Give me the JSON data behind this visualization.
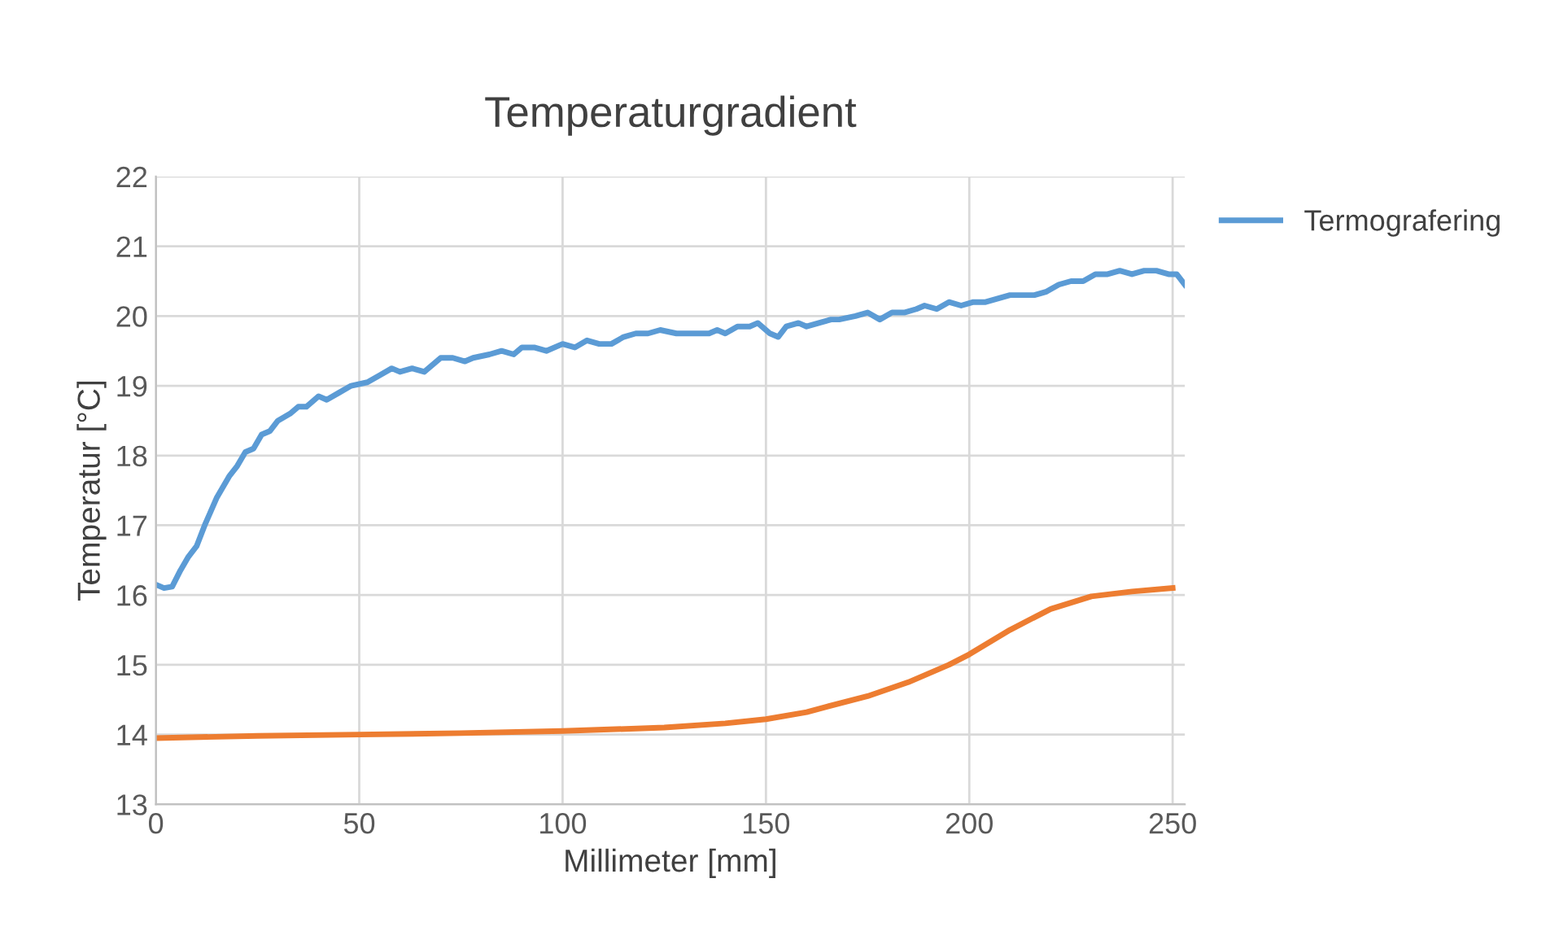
{
  "chart_data": {
    "type": "line",
    "title": "Temperaturgradient",
    "xlabel": "Millimeter [mm]",
    "ylabel": "Temperatur [°C]",
    "xlim": [
      0,
      253
    ],
    "xticks": [
      0,
      50,
      100,
      150,
      200,
      250
    ],
    "ylim": [
      13,
      22
    ],
    "yticks": [
      13,
      14,
      15,
      16,
      17,
      18,
      19,
      20,
      21,
      22
    ],
    "grid": true,
    "legend": "right",
    "marker": "none",
    "line_style": "solid",
    "series": [
      {
        "name": "Termografering",
        "color": "#5b9bd5",
        "x": [
          0,
          2,
          4,
          6,
          8,
          10,
          12,
          15,
          18,
          20,
          22,
          24,
          26,
          28,
          30,
          33,
          35,
          37,
          40,
          42,
          45,
          48,
          52,
          55,
          58,
          60,
          63,
          66,
          70,
          73,
          76,
          78,
          82,
          85,
          88,
          90,
          93,
          96,
          100,
          103,
          106,
          109,
          112,
          115,
          118,
          121,
          124,
          128,
          132,
          136,
          138,
          140,
          143,
          146,
          148,
          151,
          153,
          155,
          158,
          160,
          163,
          166,
          168,
          172,
          175,
          178,
          181,
          184,
          187,
          189,
          192,
          195,
          198,
          201,
          204,
          207,
          210,
          213,
          216,
          219,
          222,
          225,
          228,
          231,
          234,
          237,
          240,
          243,
          246,
          249,
          251,
          253
        ],
        "values": [
          16.15,
          16.1,
          16.12,
          16.35,
          16.55,
          16.7,
          17.0,
          17.4,
          17.7,
          17.85,
          18.05,
          18.1,
          18.3,
          18.35,
          18.5,
          18.6,
          18.7,
          18.7,
          18.85,
          18.8,
          18.9,
          19.0,
          19.05,
          19.15,
          19.25,
          19.2,
          19.25,
          19.2,
          19.4,
          19.4,
          19.35,
          19.4,
          19.45,
          19.5,
          19.45,
          19.55,
          19.55,
          19.5,
          19.6,
          19.55,
          19.65,
          19.6,
          19.6,
          19.7,
          19.75,
          19.75,
          19.8,
          19.75,
          19.75,
          19.75,
          19.8,
          19.75,
          19.85,
          19.85,
          19.9,
          19.75,
          19.7,
          19.85,
          19.9,
          19.85,
          19.9,
          19.95,
          19.95,
          20.0,
          20.05,
          19.95,
          20.05,
          20.05,
          20.1,
          20.15,
          20.1,
          20.2,
          20.15,
          20.2,
          20.2,
          20.25,
          20.3,
          20.3,
          20.3,
          20.35,
          20.45,
          20.5,
          20.5,
          20.6,
          20.6,
          20.65,
          20.6,
          20.65,
          20.65,
          20.6,
          20.6,
          20.45
        ]
      },
      {
        "color": "#ed7d31",
        "x": [
          0,
          25,
          50,
          75,
          100,
          125,
          140,
          150,
          160,
          165,
          175,
          185,
          195,
          200,
          210,
          220,
          230,
          240,
          250
        ],
        "values": [
          13.95,
          13.98,
          14.0,
          14.02,
          14.05,
          14.1,
          14.16,
          14.22,
          14.32,
          14.4,
          14.55,
          14.75,
          15.0,
          15.15,
          15.5,
          15.8,
          15.98,
          16.05,
          16.1
        ]
      }
    ]
  }
}
